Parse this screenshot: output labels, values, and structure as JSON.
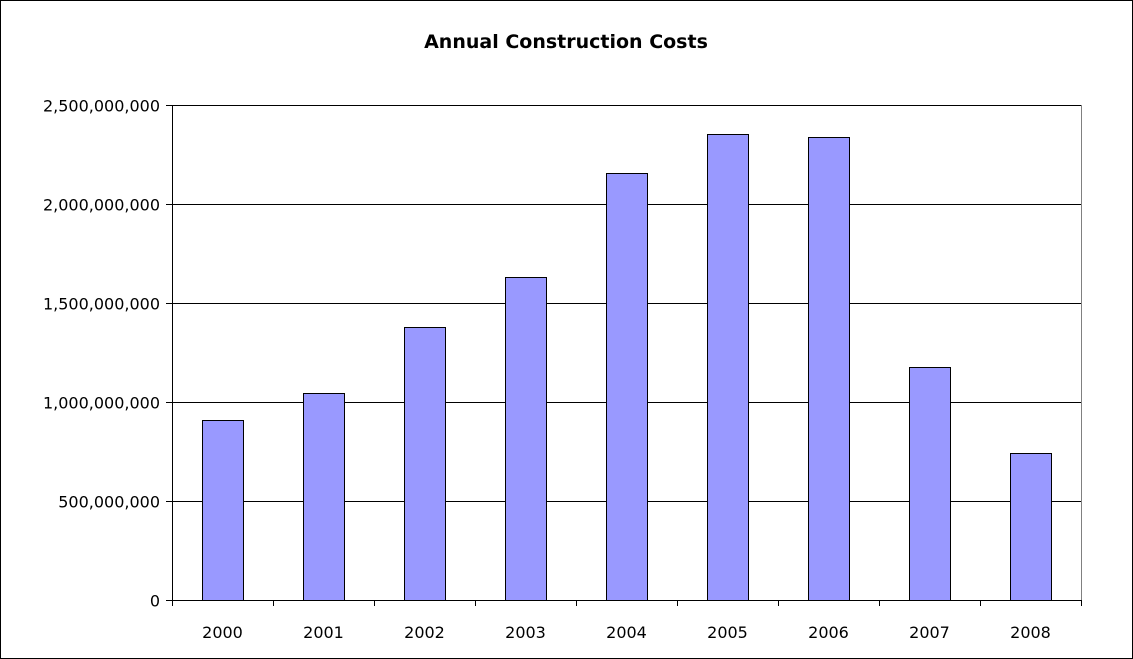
{
  "chart_data": {
    "type": "bar",
    "title": "Annual Construction Costs",
    "xlabel": "",
    "ylabel": "",
    "categories": [
      "2000",
      "2001",
      "2002",
      "2003",
      "2004",
      "2005",
      "2006",
      "2007",
      "2008"
    ],
    "values": [
      910000000,
      1045000000,
      1380000000,
      1630000000,
      2155000000,
      2355000000,
      2340000000,
      1175000000,
      740000000
    ],
    "ylim": [
      0,
      2500000000
    ],
    "yticks": [
      0,
      500000000,
      1000000000,
      1500000000,
      2000000000,
      2500000000
    ],
    "ytick_labels": [
      "0",
      "500,000,000",
      "1,000,000,000",
      "1,500,000,000",
      "2,000,000,000",
      "2,500,000,000"
    ],
    "grid": true,
    "legend": "none",
    "colors": {
      "bar_fill": "#9999FF",
      "bar_stroke": "#000000",
      "gridline": "#000000",
      "plot_background": "#FFFFFF"
    }
  }
}
